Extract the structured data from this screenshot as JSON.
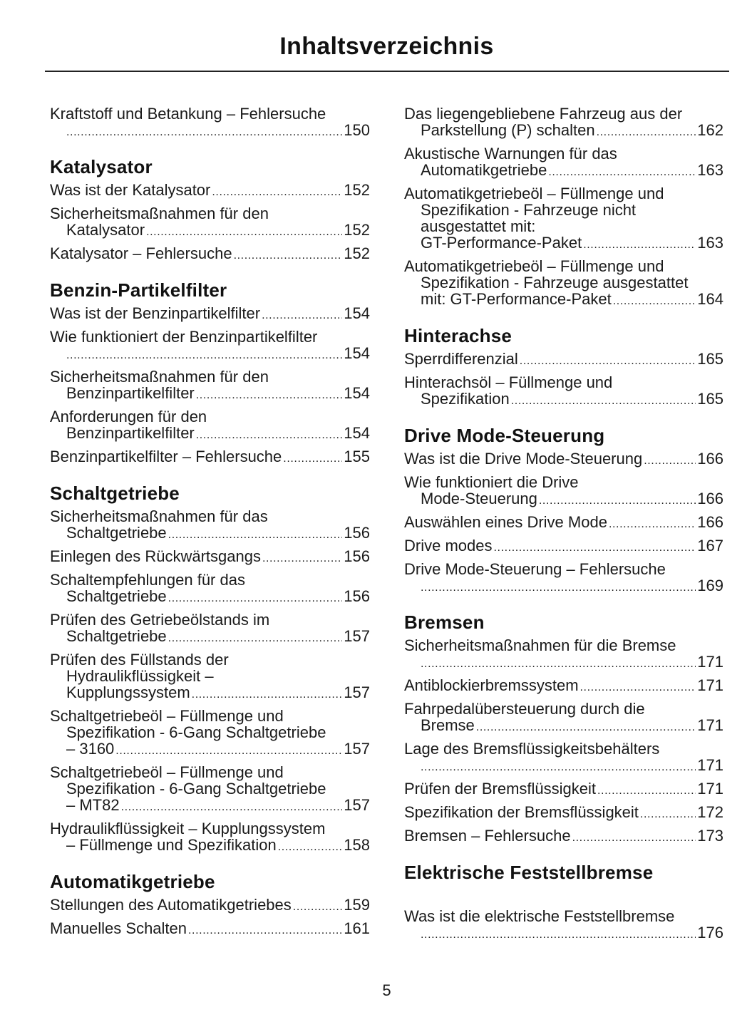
{
  "header": {
    "title": "Inhaltsverzeichnis"
  },
  "columns": [
    {
      "sections": [
        {
          "heading": "",
          "entries": [
            {
              "lines": [
                "Kraftstoff und Betankung – Fehlersuche",
                ""
              ],
              "page": "150"
            }
          ]
        },
        {
          "heading": "Katalysator",
          "entries": [
            {
              "lines": [
                "Was ist der Katalysator"
              ],
              "page": "152"
            },
            {
              "lines": [
                "Sicherheitsmaßnahmen für den",
                "Katalysator"
              ],
              "page": "152"
            },
            {
              "lines": [
                "Katalysator – Fehlersuche"
              ],
              "page": "152"
            }
          ]
        },
        {
          "heading": "Benzin-Partikelfilter",
          "entries": [
            {
              "lines": [
                "Was ist der Benzinpartikelfilter"
              ],
              "page": "154"
            },
            {
              "lines": [
                "Wie funktioniert der Benzinpartikelfilter",
                ""
              ],
              "page": "154"
            },
            {
              "lines": [
                "Sicherheitsmaßnahmen für den",
                "Benzinpartikelfilter"
              ],
              "page": "154"
            },
            {
              "lines": [
                "Anforderungen für den",
                "Benzinpartikelfilter"
              ],
              "page": "154"
            },
            {
              "lines": [
                "Benzinpartikelfilter – Fehlersuche"
              ],
              "page": "155"
            }
          ]
        },
        {
          "heading": "Schaltgetriebe",
          "entries": [
            {
              "lines": [
                "Sicherheitsmaßnahmen für das",
                "Schaltgetriebe"
              ],
              "page": "156"
            },
            {
              "lines": [
                "Einlegen des Rückwärtsgangs"
              ],
              "page": "156"
            },
            {
              "lines": [
                "Schaltempfehlungen für das",
                "Schaltgetriebe"
              ],
              "page": "156"
            },
            {
              "lines": [
                "Prüfen des Getriebeölstands im",
                "Schaltgetriebe"
              ],
              "page": "157"
            },
            {
              "lines": [
                "Prüfen des Füllstands der",
                "Hydraulikflüssigkeit –",
                "Kupplungssystem"
              ],
              "page": "157"
            },
            {
              "lines": [
                "Schaltgetriebeöl – Füllmenge und",
                "Spezifikation - 6-Gang Schaltgetriebe",
                "– 3160"
              ],
              "page": "157"
            },
            {
              "lines": [
                "Schaltgetriebeöl – Füllmenge und",
                "Spezifikation - 6-Gang Schaltgetriebe",
                "– MT82"
              ],
              "page": "157"
            },
            {
              "lines": [
                "Hydraulikflüssigkeit – Kupplungssystem",
                "– Füllmenge und Spezifikation"
              ],
              "page": "158"
            }
          ]
        },
        {
          "heading": "Automatikgetriebe",
          "entries": [
            {
              "lines": [
                "Stellungen des Automatikgetriebes"
              ],
              "page": "159"
            },
            {
              "lines": [
                "Manuelles Schalten"
              ],
              "page": "161"
            }
          ]
        }
      ]
    },
    {
      "sections": [
        {
          "heading": "",
          "entries": [
            {
              "lines": [
                "Das liegengebliebene Fahrzeug aus der",
                "Parkstellung (P) schalten"
              ],
              "page": "162"
            },
            {
              "lines": [
                "Akustische Warnungen für das",
                "Automatikgetriebe"
              ],
              "page": "163"
            },
            {
              "lines": [
                "Automatikgetriebeöl – Füllmenge und",
                "Spezifikation - Fahrzeuge nicht",
                "ausgestattet mit:",
                "GT-Performance-Paket"
              ],
              "page": "163"
            },
            {
              "lines": [
                "Automatikgetriebeöl – Füllmenge und",
                "Spezifikation - Fahrzeuge ausgestattet",
                "mit: GT-Performance-Paket"
              ],
              "page": "164"
            }
          ]
        },
        {
          "heading": "Hinterachse",
          "entries": [
            {
              "lines": [
                "Sperrdifferenzial"
              ],
              "page": "165"
            },
            {
              "lines": [
                "Hinterachsöl – Füllmenge und",
                "Spezifikation"
              ],
              "page": "165"
            }
          ]
        },
        {
          "heading": "Drive Mode-Steuerung",
          "entries": [
            {
              "lines": [
                "Was ist die Drive Mode-Steuerung"
              ],
              "page": "166"
            },
            {
              "lines": [
                "Wie funktioniert die Drive",
                "Mode-Steuerung"
              ],
              "page": "166"
            },
            {
              "lines": [
                "Auswählen eines Drive Mode"
              ],
              "page": "166"
            },
            {
              "lines": [
                "Drive modes"
              ],
              "page": "167"
            },
            {
              "lines": [
                "Drive Mode-Steuerung – Fehlersuche",
                ""
              ],
              "page": "169"
            }
          ]
        },
        {
          "heading": "Bremsen",
          "entries": [
            {
              "lines": [
                "Sicherheitsmaßnahmen für die Bremse",
                ""
              ],
              "page": "171"
            },
            {
              "lines": [
                "Antiblockierbremssystem"
              ],
              "page": "171"
            },
            {
              "lines": [
                "Fahrpedalübersteuerung durch die",
                "Bremse"
              ],
              "page": "171"
            },
            {
              "lines": [
                "Lage des Bremsflüssigkeitsbehälters",
                ""
              ],
              "page": "171"
            },
            {
              "lines": [
                "Prüfen der Bremsflüssigkeit"
              ],
              "page": "171"
            },
            {
              "lines": [
                "Spezifikation der Bremsflüssigkeit"
              ],
              "page": "172"
            },
            {
              "lines": [
                "Bremsen – Fehlersuche"
              ],
              "page": "173"
            }
          ]
        },
        {
          "heading": "Elektrische Feststellbremse",
          "entries": [
            {
              "lines": [
                "Was ist die elektrische Feststellbremse",
                ""
              ],
              "page": "176"
            }
          ]
        }
      ]
    }
  ],
  "footer": {
    "page_number": "5"
  }
}
